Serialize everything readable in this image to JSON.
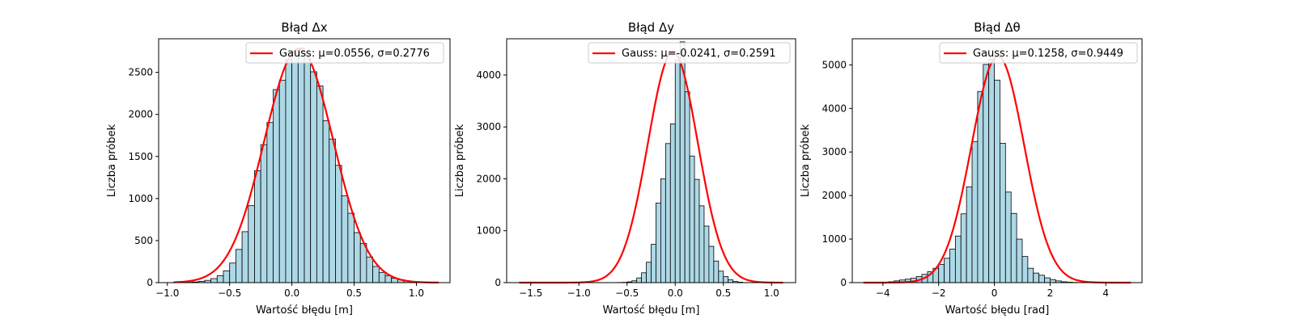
{
  "figure": {
    "background": "#ffffff"
  },
  "style": {
    "bar_fill": "#add8e6",
    "bar_edge": "#000000",
    "curve": "#ff0000"
  },
  "chart_data": [
    {
      "type": "bar",
      "title": "Błąd Δx",
      "xlabel": "Wartość błędu [m]",
      "ylabel": "Liczba próbek",
      "xlim": [
        -1.07,
        1.27
      ],
      "ylim": [
        0,
        2900
      ],
      "xticks": [
        -1.0,
        -0.5,
        0.0,
        0.5,
        1.0
      ],
      "xtick_labels": [
        "−1.0",
        "−0.5",
        "0.0",
        "0.5",
        "1.0"
      ],
      "yticks": [
        0,
        500,
        1000,
        1500,
        2000,
        2500
      ],
      "bins": {
        "start": -0.95,
        "width": 0.05
      },
      "values": [
        1,
        2,
        4,
        8,
        15,
        27,
        48,
        82,
        140,
        233,
        395,
        606,
        915,
        1331,
        1640,
        1904,
        2296,
        2408,
        2650,
        2760,
        2791,
        2706,
        2507,
        2340,
        1925,
        1708,
        1395,
        1034,
        825,
        595,
        465,
        305,
        193,
        122,
        83,
        51,
        36,
        22,
        10,
        6,
        3,
        1,
        0,
        0,
        0
      ],
      "series": [
        {
          "name": "Gauss: μ=0.0556, σ=0.2776",
          "mu": 0.0556,
          "sigma": 0.2776,
          "amplitude": 2780,
          "x_range": [
            -0.95,
            1.18
          ]
        }
      ],
      "legend": "top-right",
      "grid": false
    },
    {
      "type": "bar",
      "title": "Błąd Δy",
      "xlabel": "Wartość błędu [m]",
      "ylabel": "Liczba próbek",
      "xlim": [
        -1.75,
        1.25
      ],
      "ylim": [
        0,
        4700
      ],
      "xticks": [
        -1.5,
        -1.0,
        -0.5,
        0.0,
        0.5,
        1.0
      ],
      "xtick_labels": [
        "−1.5",
        "−1.0",
        "−0.5",
        "0.0",
        "0.5",
        "1.0"
      ],
      "yticks": [
        0,
        1000,
        2000,
        3000,
        4000
      ],
      "bins": {
        "start": -0.65,
        "width": 0.05
      },
      "values": [
        1,
        3,
        6,
        14,
        35,
        90,
        190,
        393,
        738,
        1533,
        2000,
        2680,
        3060,
        4290,
        4640,
        3680,
        2440,
        1990,
        1480,
        1090,
        700,
        416,
        222,
        116,
        54,
        22,
        9
      ],
      "series": [
        {
          "name": "Gauss: μ=-0.0241, σ=0.2591",
          "mu": -0.0241,
          "sigma": 0.2591,
          "amplitude": 4440,
          "x_range": [
            -1.62,
            1.12
          ]
        }
      ],
      "legend": "top-right",
      "grid": false
    },
    {
      "type": "bar",
      "title": "Błąd Δθ",
      "xlabel": "Wartość błędu [rad]",
      "ylabel": "Liczba próbek",
      "xlim": [
        -5.1,
        5.3
      ],
      "ylim": [
        0,
        5600
      ],
      "xticks": [
        -4,
        -2,
        0,
        2,
        4
      ],
      "xtick_labels": [
        "−4",
        "−2",
        "0",
        "2",
        "4"
      ],
      "yticks": [
        0,
        1000,
        2000,
        3000,
        4000,
        5000
      ],
      "bins": {
        "start": -4.2,
        "width": 0.2
      },
      "values": [
        5,
        10,
        20,
        40,
        60,
        80,
        100,
        140,
        190,
        250,
        330,
        420,
        560,
        770,
        1070,
        1580,
        2200,
        3240,
        4390,
        5010,
        5130,
        4650,
        3200,
        2080,
        1590,
        1000,
        600,
        330,
        220,
        170,
        110,
        70,
        40,
        20,
        10,
        5
      ],
      "series": [
        {
          "name": "Gauss: μ=0.1258, σ=0.9449",
          "mu": 0.1258,
          "sigma": 0.9449,
          "amplitude": 5200,
          "x_range": [
            -4.7,
            4.9
          ]
        }
      ],
      "legend": "top-right",
      "grid": false
    }
  ]
}
